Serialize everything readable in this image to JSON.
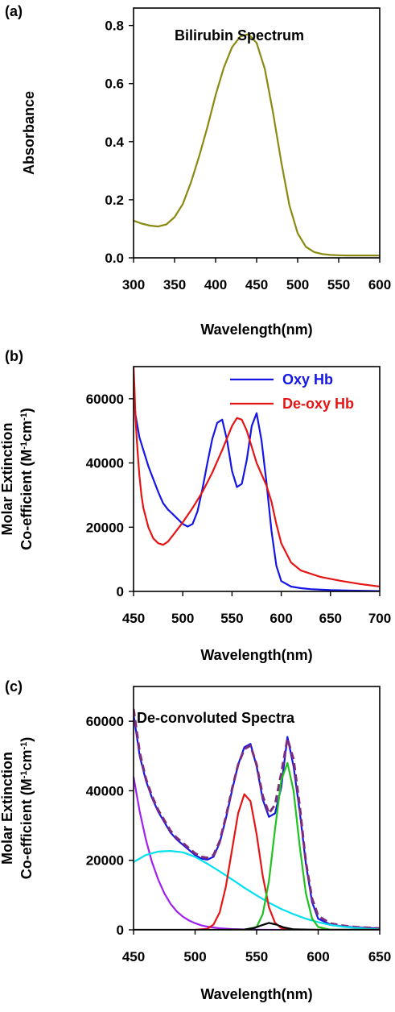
{
  "chart_data": [
    {
      "type": "line",
      "panel_label": "(a)",
      "annotation": "Bilirubin Spectrum",
      "xlabel": "Wavelength(nm)",
      "ylabel": "Absorbance",
      "xlim": [
        300,
        600
      ],
      "ylim": [
        0,
        0.86
      ],
      "xticks": [
        300,
        350,
        400,
        450,
        500,
        550,
        600
      ],
      "yticks": [
        0.0,
        0.2,
        0.4,
        0.6,
        0.8
      ],
      "ytick_labels": [
        "0.0",
        "0.2",
        "0.4",
        "0.6",
        "0.8"
      ],
      "series": [
        {
          "color": "#8a8a12",
          "x": [
            300,
            310,
            320,
            330,
            340,
            350,
            360,
            370,
            380,
            390,
            400,
            410,
            420,
            430,
            440,
            450,
            460,
            470,
            480,
            490,
            500,
            510,
            520,
            530,
            540,
            550,
            560,
            570,
            580,
            590,
            600
          ],
          "y": [
            0.128,
            0.118,
            0.111,
            0.108,
            0.115,
            0.14,
            0.185,
            0.26,
            0.35,
            0.45,
            0.56,
            0.655,
            0.725,
            0.762,
            0.77,
            0.74,
            0.65,
            0.5,
            0.33,
            0.18,
            0.085,
            0.038,
            0.02,
            0.013,
            0.01,
            0.009,
            0.008,
            0.008,
            0.008,
            0.008,
            0.008
          ]
        }
      ]
    },
    {
      "type": "line",
      "panel_label": "(b)",
      "xlabel": "Wavelength(nm)",
      "ylabel_lines": [
        "Molar Extinction",
        "Co-efficient (M",
        "-1",
        "cm",
        "-1",
        ")"
      ],
      "xlim": [
        450,
        700
      ],
      "ylim": [
        0,
        70000
      ],
      "xticks": [
        450,
        500,
        550,
        600,
        650,
        700
      ],
      "yticks": [
        0,
        20000,
        40000,
        60000
      ],
      "legend_position": "top-right",
      "series": [
        {
          "name": "Oxy Hb",
          "color": "#1515e6",
          "x": [
            450,
            452,
            456,
            460,
            465,
            470,
            475,
            480,
            485,
            490,
            495,
            500,
            505,
            510,
            515,
            520,
            525,
            530,
            535,
            540,
            545,
            550,
            555,
            560,
            565,
            570,
            575,
            580,
            585,
            590,
            595,
            600,
            610,
            620,
            630,
            650,
            670,
            700
          ],
          "y": [
            62000,
            55000,
            48000,
            44000,
            39000,
            35000,
            31000,
            27500,
            25500,
            24000,
            22500,
            21000,
            20200,
            21000,
            25000,
            32000,
            40000,
            47500,
            52500,
            53500,
            47000,
            37500,
            32500,
            33500,
            41000,
            51500,
            55500,
            47000,
            34000,
            19000,
            8000,
            3200,
            1500,
            1000,
            700,
            400,
            250,
            100
          ]
        },
        {
          "name": "De-oxy Hb",
          "color": "#e61515",
          "x": [
            450,
            451,
            452,
            454,
            456,
            458,
            460,
            465,
            470,
            475,
            480,
            485,
            490,
            495,
            500,
            510,
            520,
            530,
            540,
            550,
            555,
            560,
            565,
            570,
            575,
            580,
            585,
            590,
            595,
            600,
            610,
            620,
            640,
            660,
            680,
            700
          ],
          "y": [
            70000,
            63000,
            54000,
            44000,
            36000,
            30000,
            26000,
            20000,
            16500,
            15000,
            14500,
            15500,
            17500,
            19500,
            21500,
            26000,
            31000,
            37000,
            44000,
            51500,
            54000,
            53500,
            50000,
            45000,
            40000,
            36500,
            33000,
            28000,
            21000,
            15000,
            9000,
            6500,
            4500,
            3300,
            2300,
            1500
          ]
        }
      ]
    },
    {
      "type": "line",
      "panel_label": "(c)",
      "annotation": "De-convoluted Spectra",
      "xlabel": "Wavelength(nm)",
      "ylabel_lines": [
        "Molar Extinction",
        "Co-efficient (M",
        "-1",
        "cm",
        "-1",
        ")"
      ],
      "xlim": [
        450,
        650
      ],
      "ylim": [
        0,
        70000
      ],
      "xticks": [
        450,
        500,
        550,
        600,
        650
      ],
      "yticks": [
        0,
        20000,
        40000,
        60000
      ],
      "series": [
        {
          "color": "#1515e6",
          "x": [
            450,
            455,
            460,
            465,
            470,
            475,
            480,
            485,
            490,
            495,
            500,
            505,
            510,
            515,
            520,
            525,
            530,
            535,
            540,
            545,
            550,
            555,
            560,
            565,
            570,
            575,
            580,
            585,
            590,
            595,
            600,
            610,
            620,
            630,
            650
          ],
          "y": [
            62000,
            50000,
            43000,
            38000,
            34000,
            31000,
            28000,
            26000,
            24500,
            23000,
            21500,
            20500,
            20200,
            21000,
            25000,
            32000,
            40000,
            47500,
            52500,
            53500,
            47000,
            37500,
            32500,
            33500,
            41000,
            55500,
            47000,
            34000,
            19000,
            8000,
            3200,
            1500,
            1000,
            700,
            400
          ]
        },
        {
          "color": "#7d2d7d",
          "dashed": true,
          "x": [
            450,
            455,
            460,
            465,
            470,
            475,
            480,
            485,
            490,
            495,
            500,
            505,
            510,
            515,
            520,
            525,
            530,
            535,
            540,
            545,
            550,
            555,
            560,
            565,
            570,
            575,
            580,
            585,
            590,
            595,
            600,
            610,
            620,
            630,
            650
          ],
          "y": [
            63500,
            51000,
            43500,
            38500,
            34500,
            31500,
            28500,
            26500,
            25000,
            23500,
            22000,
            21000,
            20700,
            21500,
            25500,
            32500,
            40500,
            47500,
            52000,
            53000,
            47500,
            38500,
            33500,
            36000,
            45000,
            55000,
            49000,
            35500,
            19500,
            9000,
            4000,
            1800,
            1200,
            800,
            400
          ]
        },
        {
          "color": "#a020f0",
          "x": [
            450,
            455,
            460,
            465,
            470,
            475,
            480,
            485,
            490,
            495,
            500,
            505,
            510,
            520,
            530,
            540,
            550,
            560,
            580,
            600,
            650
          ],
          "y": [
            44000,
            34000,
            26000,
            19500,
            14500,
            10500,
            7500,
            5300,
            3800,
            2700,
            1900,
            1300,
            900,
            450,
            200,
            100,
            50,
            0,
            0,
            0,
            0
          ]
        },
        {
          "color": "#00e0f0",
          "x": [
            450,
            460,
            470,
            480,
            490,
            500,
            510,
            520,
            530,
            540,
            550,
            560,
            570,
            580,
            590,
            600,
            610,
            620,
            630,
            640,
            650
          ],
          "y": [
            19500,
            21500,
            22500,
            22700,
            22300,
            21000,
            19000,
            16800,
            14500,
            12100,
            9900,
            7800,
            6000,
            4500,
            3200,
            2200,
            1400,
            900,
            550,
            300,
            150
          ]
        },
        {
          "color": "#e61515",
          "x": [
            500,
            510,
            515,
            520,
            525,
            530,
            535,
            540,
            545,
            550,
            555,
            560,
            565,
            570,
            580,
            600,
            650
          ],
          "y": [
            0,
            300,
            1500,
            5000,
            12500,
            23000,
            33500,
            39000,
            37000,
            27500,
            15500,
            6500,
            2000,
            500,
            0,
            0,
            0
          ]
        },
        {
          "color": "#1fc21f",
          "x": [
            540,
            550,
            555,
            560,
            565,
            570,
            575,
            580,
            585,
            590,
            595,
            600,
            610,
            650
          ],
          "y": [
            0,
            800,
            4500,
            14000,
            29000,
            43000,
            48000,
            40000,
            24000,
            10500,
            3300,
            800,
            0,
            0
          ]
        },
        {
          "color": "#000000",
          "x": [
            450,
            520,
            540,
            548,
            554,
            560,
            566,
            572,
            580,
            600,
            650
          ],
          "y": [
            0,
            0,
            100,
            500,
            1300,
            2000,
            1500,
            700,
            150,
            0,
            0
          ]
        }
      ]
    }
  ]
}
